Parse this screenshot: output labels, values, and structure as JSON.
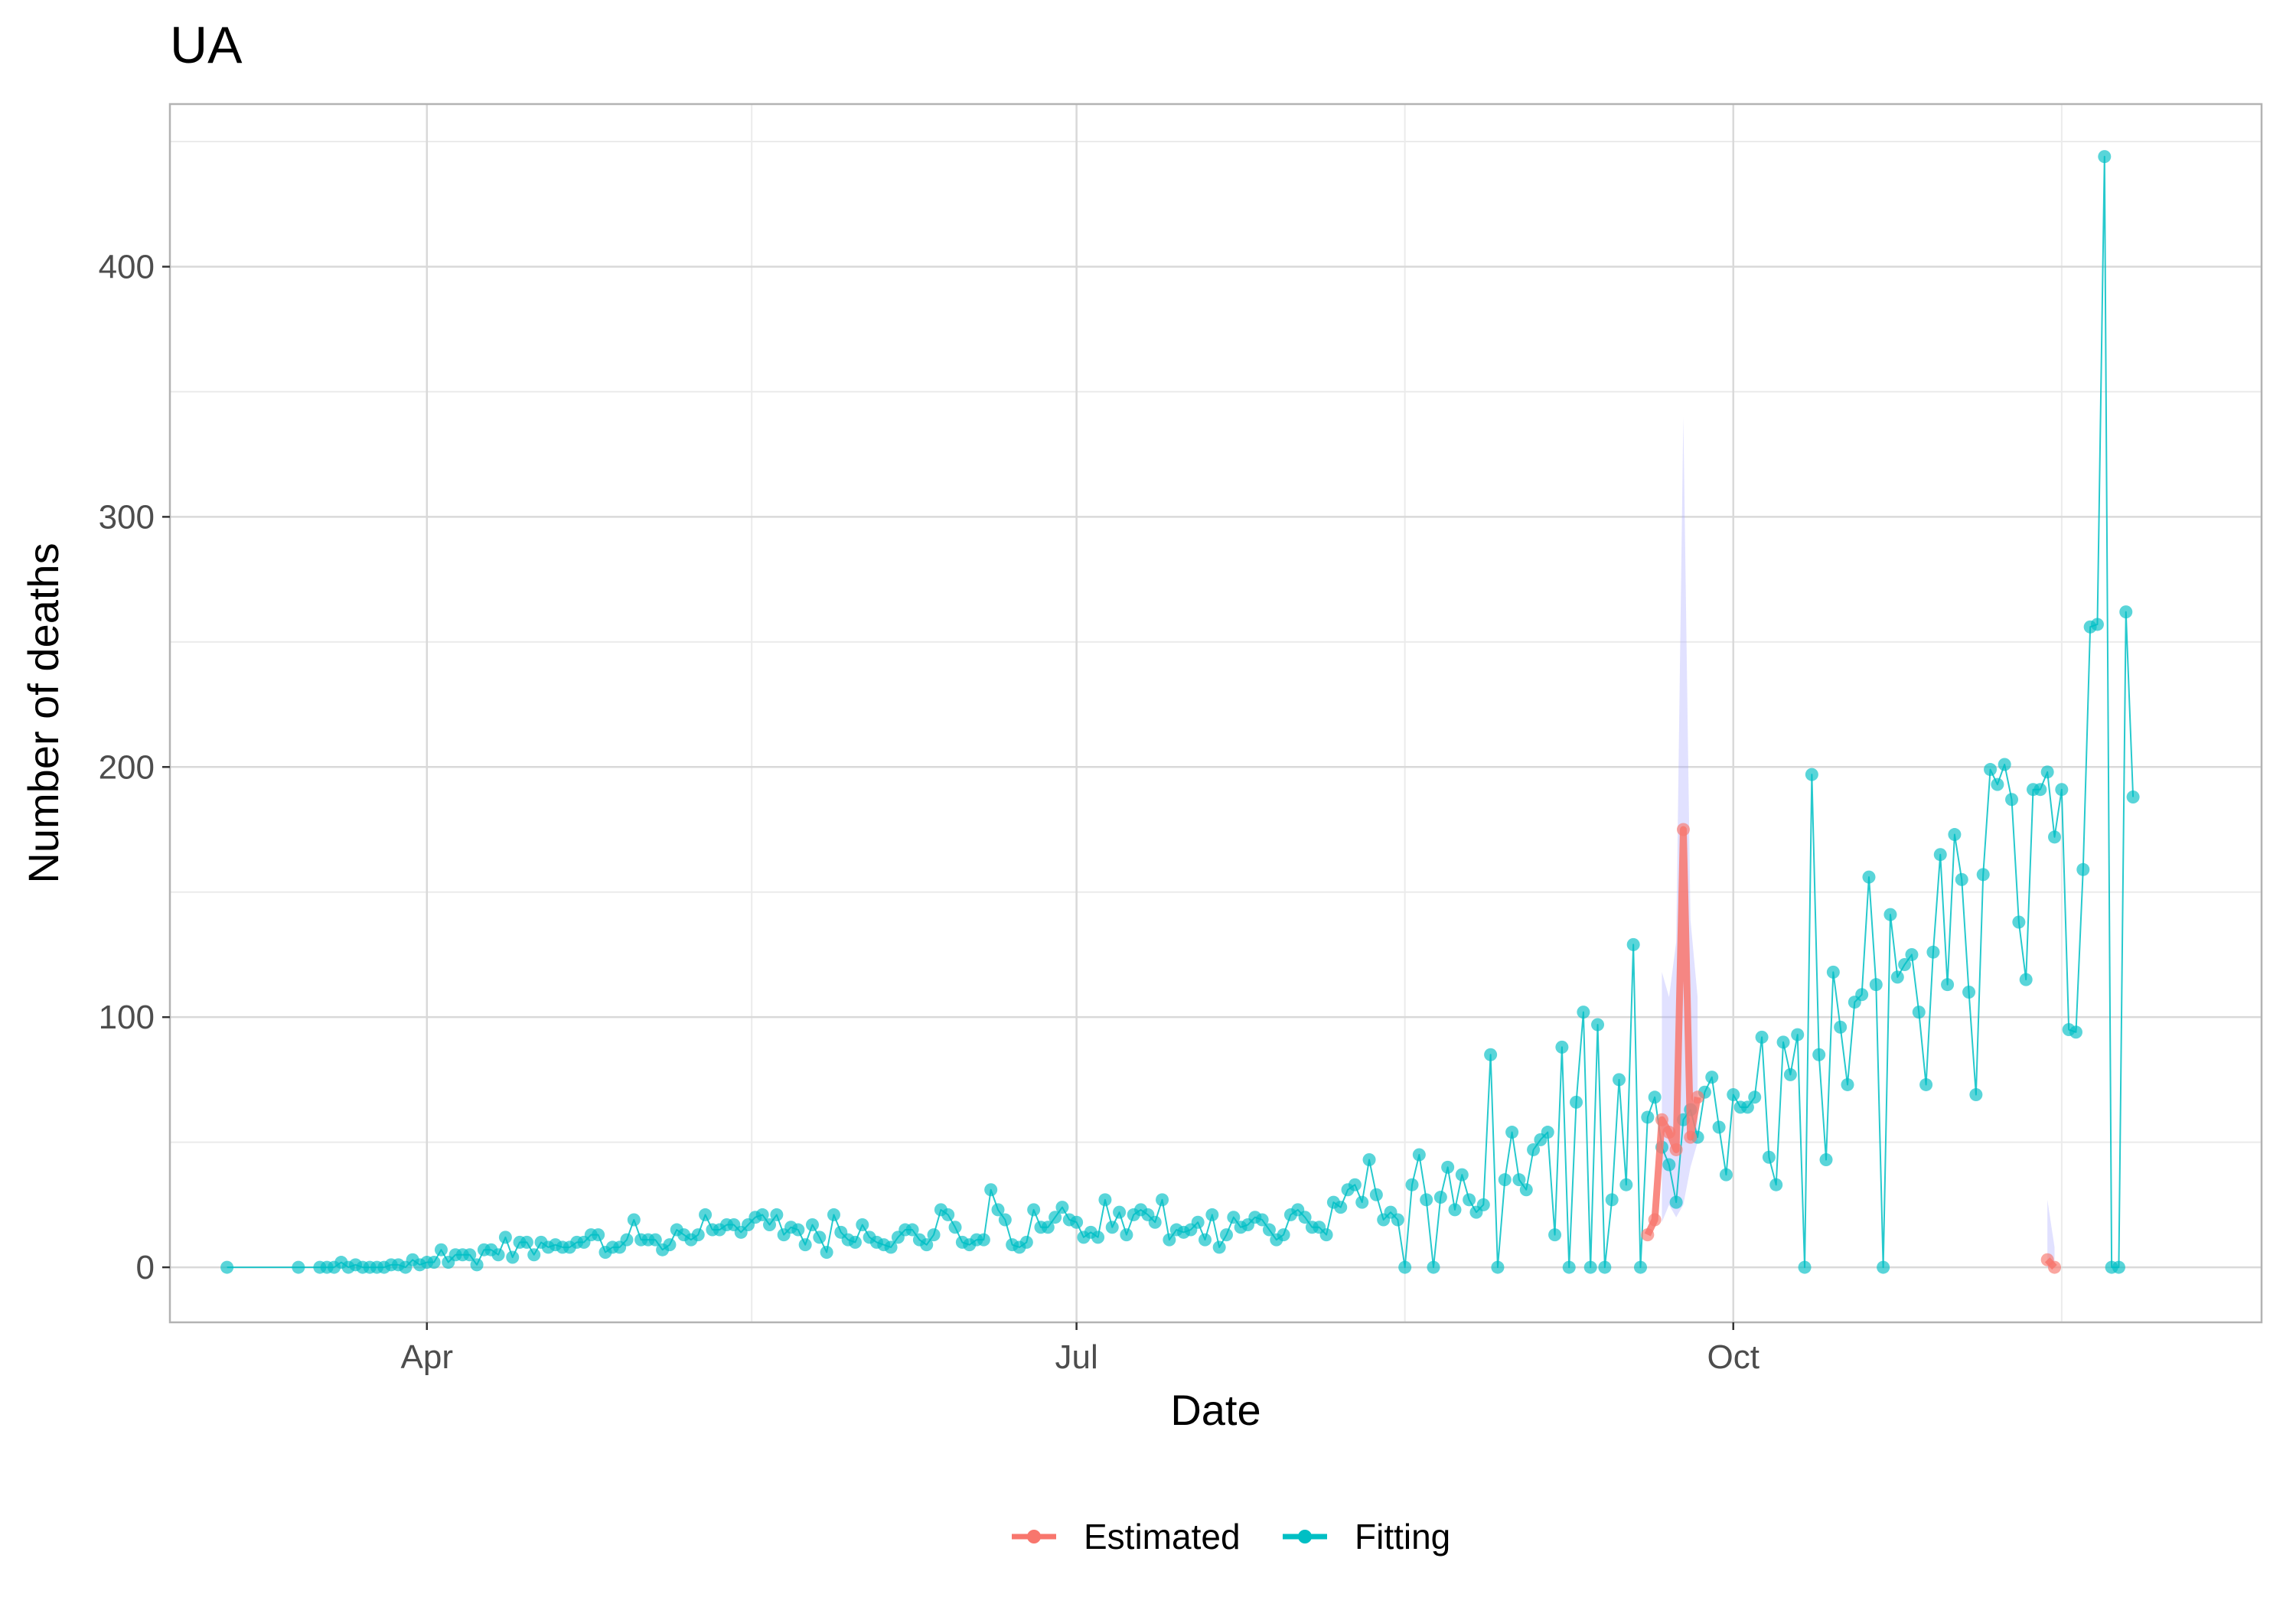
{
  "chart_data": {
    "type": "line",
    "title": "UA",
    "xlabel": "Date",
    "ylabel": "Number of  deaths",
    "x_tick_labels": [
      "Apr",
      "Jul",
      "Oct"
    ],
    "x_ticks": [
      "2020-04-01",
      "2020-07-01",
      "2020-10-01"
    ],
    "y_tick_labels": [
      "0",
      "100",
      "200",
      "300",
      "400"
    ],
    "y_ticks": [
      0,
      100,
      200,
      300,
      400
    ],
    "xlim": [
      "2020-02-25",
      "2020-12-14"
    ],
    "ylim": [
      -22,
      465
    ],
    "grid": true,
    "legend_position": "bottom",
    "colors": {
      "Estimated": "#F8766D",
      "Fitting": "#00BFC4",
      "ci_band": "#aaaaff",
      "panel_border": "#b3b3b3",
      "grid_major": "#d9d9d9",
      "grid_minor": "#ebebeb"
    },
    "series": [
      {
        "name": "Fitting",
        "start_date": "2020-03-04",
        "values": [
          0,
          null,
          null,
          null,
          null,
          null,
          null,
          null,
          null,
          null,
          0,
          null,
          null,
          0,
          0,
          0,
          2,
          0,
          1,
          0,
          0,
          0,
          0,
          1,
          1,
          0,
          3,
          1,
          2,
          2,
          7,
          2,
          5,
          5,
          5,
          1,
          7,
          7,
          5,
          12,
          4,
          10,
          10,
          5,
          10,
          8,
          9,
          8,
          8,
          10,
          10,
          13,
          13,
          6,
          8,
          8,
          11,
          19,
          11,
          11,
          11,
          7,
          9,
          15,
          13,
          11,
          13,
          21,
          15,
          15,
          17,
          17,
          14,
          17,
          20,
          21,
          17,
          21,
          13,
          16,
          15,
          9,
          17,
          12,
          6,
          21,
          14,
          11,
          10,
          17,
          12,
          10,
          9,
          8,
          12,
          15,
          15,
          11,
          9,
          13,
          23,
          21,
          16,
          10,
          9,
          11,
          11,
          31,
          23,
          19,
          9,
          8,
          10,
          23,
          16,
          16,
          20,
          24,
          19,
          18,
          12,
          14,
          12,
          27,
          16,
          22,
          13,
          21,
          23,
          21,
          18,
          27,
          11,
          15,
          14,
          15,
          18,
          11,
          21,
          8,
          13,
          20,
          16,
          17,
          20,
          19,
          15,
          11,
          13,
          21,
          23,
          20,
          16,
          16,
          13,
          26,
          24,
          31,
          33,
          26,
          43,
          29,
          19,
          22,
          19,
          0,
          33,
          45,
          27,
          0,
          28,
          40,
          23,
          37,
          27,
          22,
          25,
          85,
          0,
          35,
          54,
          35,
          31,
          47,
          51,
          54,
          13,
          88,
          0,
          66,
          102,
          0,
          97,
          0,
          27,
          75,
          33,
          129,
          0,
          60,
          68,
          48,
          41,
          26,
          59,
          63,
          52,
          70,
          76,
          56,
          37,
          69,
          64,
          64,
          68,
          92,
          44,
          33,
          90,
          77,
          93,
          0,
          197,
          85,
          43,
          118,
          96,
          73,
          106,
          109,
          156,
          113,
          0,
          141,
          116,
          121,
          125,
          102,
          73,
          126,
          165,
          113,
          173,
          155,
          110,
          69,
          157,
          199,
          193,
          201,
          187,
          138,
          115,
          191,
          191,
          198,
          172,
          191,
          95,
          94,
          159,
          256,
          257,
          444,
          0,
          0,
          262,
          188
        ]
      },
      {
        "name": "Estimated",
        "start_date": "2020-09-19",
        "values": [
          13,
          19,
          59,
          54,
          47,
          175,
          52,
          68
        ]
      },
      {
        "name": "Estimated",
        "start_date": "2020-11-14",
        "values": [
          3,
          0
        ]
      }
    ],
    "ci_bands": [
      {
        "start_date": "2020-09-21",
        "lower": [
          18,
          25,
          20,
          25,
          40,
          50
        ],
        "upper": [
          118,
          108,
          130,
          340,
          139,
          108
        ]
      },
      {
        "start_date": "2020-11-14",
        "lower": [
          0,
          0
        ],
        "upper": [
          27,
          8
        ]
      }
    ]
  }
}
